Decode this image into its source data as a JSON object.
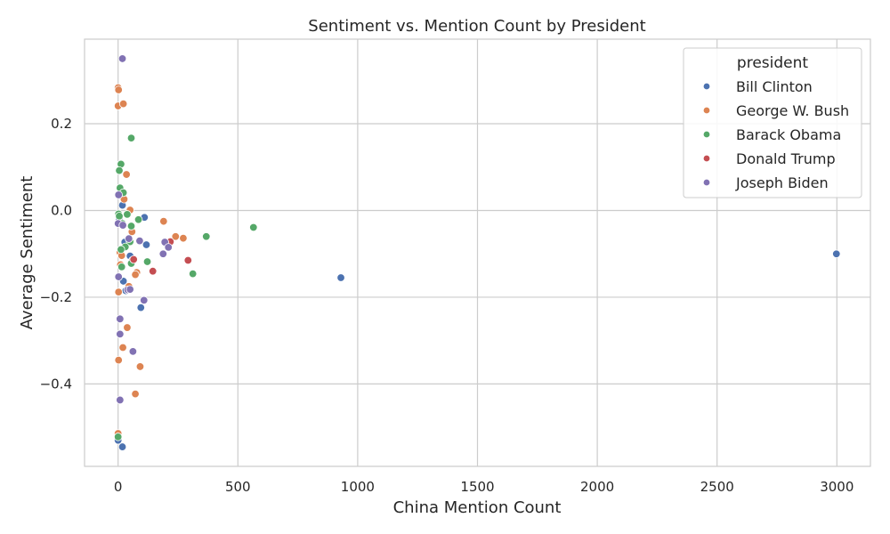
{
  "chart_data": {
    "type": "scatter",
    "title": "Sentiment vs. Mention Count by President",
    "xlabel": "China Mention Count",
    "ylabel": "Average Sentiment",
    "xlim": [
      -140,
      3140
    ],
    "ylim": [
      -0.59,
      0.395
    ],
    "xticks": [
      0,
      500,
      1000,
      1500,
      2000,
      2500,
      3000
    ],
    "yticks": [
      0.2,
      0.0,
      -0.2,
      -0.4
    ],
    "ytick_labels": [
      "0.2",
      "0.0",
      "−0.2",
      "−0.4"
    ],
    "grid": true,
    "legend_title": "president",
    "legend_position": "top-right",
    "series": [
      {
        "name": "Bill Clinton",
        "color": "#4c72b0",
        "points": [
          {
            "x": 2998,
            "y": -0.1
          },
          {
            "x": 930,
            "y": -0.155
          },
          {
            "x": 18,
            "y": 0.012
          },
          {
            "x": 110,
            "y": -0.016
          },
          {
            "x": 118,
            "y": -0.079
          },
          {
            "x": 50,
            "y": -0.105
          },
          {
            "x": 28,
            "y": -0.073
          },
          {
            "x": 22,
            "y": -0.163
          },
          {
            "x": 32,
            "y": -0.185
          },
          {
            "x": 95,
            "y": -0.224
          },
          {
            "x": 0,
            "y": -0.53
          },
          {
            "x": 18,
            "y": -0.545
          },
          {
            "x": 5,
            "y": -0.02
          }
        ]
      },
      {
        "name": "George W. Bush",
        "color": "#dd8452",
        "points": [
          {
            "x": 0,
            "y": 0.283
          },
          {
            "x": 2,
            "y": 0.278
          },
          {
            "x": 0,
            "y": 0.241
          },
          {
            "x": 22,
            "y": 0.246
          },
          {
            "x": 35,
            "y": 0.083
          },
          {
            "x": 25,
            "y": 0.026
          },
          {
            "x": 50,
            "y": 0.001
          },
          {
            "x": 190,
            "y": -0.025
          },
          {
            "x": 240,
            "y": -0.06
          },
          {
            "x": 272,
            "y": -0.064
          },
          {
            "x": 58,
            "y": -0.049
          },
          {
            "x": 8,
            "y": -0.097
          },
          {
            "x": 15,
            "y": -0.104
          },
          {
            "x": 10,
            "y": -0.125
          },
          {
            "x": 78,
            "y": -0.143
          },
          {
            "x": 72,
            "y": -0.148
          },
          {
            "x": 45,
            "y": -0.175
          },
          {
            "x": 2,
            "y": -0.188
          },
          {
            "x": 38,
            "y": -0.27
          },
          {
            "x": 20,
            "y": -0.316
          },
          {
            "x": 2,
            "y": -0.345
          },
          {
            "x": 92,
            "y": -0.36
          },
          {
            "x": 72,
            "y": -0.423
          },
          {
            "x": 0,
            "y": -0.514
          },
          {
            "x": 60,
            "y": -0.115
          }
        ]
      },
      {
        "name": "Barack Obama",
        "color": "#55a868",
        "points": [
          {
            "x": 55,
            "y": 0.167
          },
          {
            "x": 12,
            "y": 0.107
          },
          {
            "x": 5,
            "y": 0.092
          },
          {
            "x": 8,
            "y": 0.052
          },
          {
            "x": 22,
            "y": 0.041
          },
          {
            "x": 38,
            "y": -0.009
          },
          {
            "x": 2,
            "y": -0.008
          },
          {
            "x": 5,
            "y": -0.013
          },
          {
            "x": 85,
            "y": -0.021
          },
          {
            "x": 55,
            "y": -0.036
          },
          {
            "x": 50,
            "y": -0.072
          },
          {
            "x": 30,
            "y": -0.084
          },
          {
            "x": 12,
            "y": -0.09
          },
          {
            "x": 565,
            "y": -0.039
          },
          {
            "x": 368,
            "y": -0.06
          },
          {
            "x": 122,
            "y": -0.118
          },
          {
            "x": 55,
            "y": -0.122
          },
          {
            "x": 15,
            "y": -0.13
          },
          {
            "x": 312,
            "y": -0.146
          },
          {
            "x": 0,
            "y": -0.522
          },
          {
            "x": 18,
            "y": -0.03
          }
        ]
      },
      {
        "name": "Donald Trump",
        "color": "#c44e52",
        "points": [
          {
            "x": 218,
            "y": -0.072
          },
          {
            "x": 292,
            "y": -0.115
          },
          {
            "x": 145,
            "y": -0.14
          },
          {
            "x": 65,
            "y": -0.113
          }
        ]
      },
      {
        "name": "Joseph Biden",
        "color": "#8172b3",
        "points": [
          {
            "x": 18,
            "y": 0.35
          },
          {
            "x": 2,
            "y": 0.036
          },
          {
            "x": 0,
            "y": -0.03
          },
          {
            "x": 20,
            "y": -0.034
          },
          {
            "x": 90,
            "y": -0.07
          },
          {
            "x": 195,
            "y": -0.073
          },
          {
            "x": 210,
            "y": -0.085
          },
          {
            "x": 188,
            "y": -0.1
          },
          {
            "x": 2,
            "y": -0.153
          },
          {
            "x": 40,
            "y": -0.183
          },
          {
            "x": 50,
            "y": -0.182
          },
          {
            "x": 108,
            "y": -0.207
          },
          {
            "x": 8,
            "y": -0.25
          },
          {
            "x": 8,
            "y": -0.285
          },
          {
            "x": 62,
            "y": -0.325
          },
          {
            "x": 8,
            "y": -0.437
          },
          {
            "x": 45,
            "y": -0.065
          }
        ]
      }
    ]
  }
}
